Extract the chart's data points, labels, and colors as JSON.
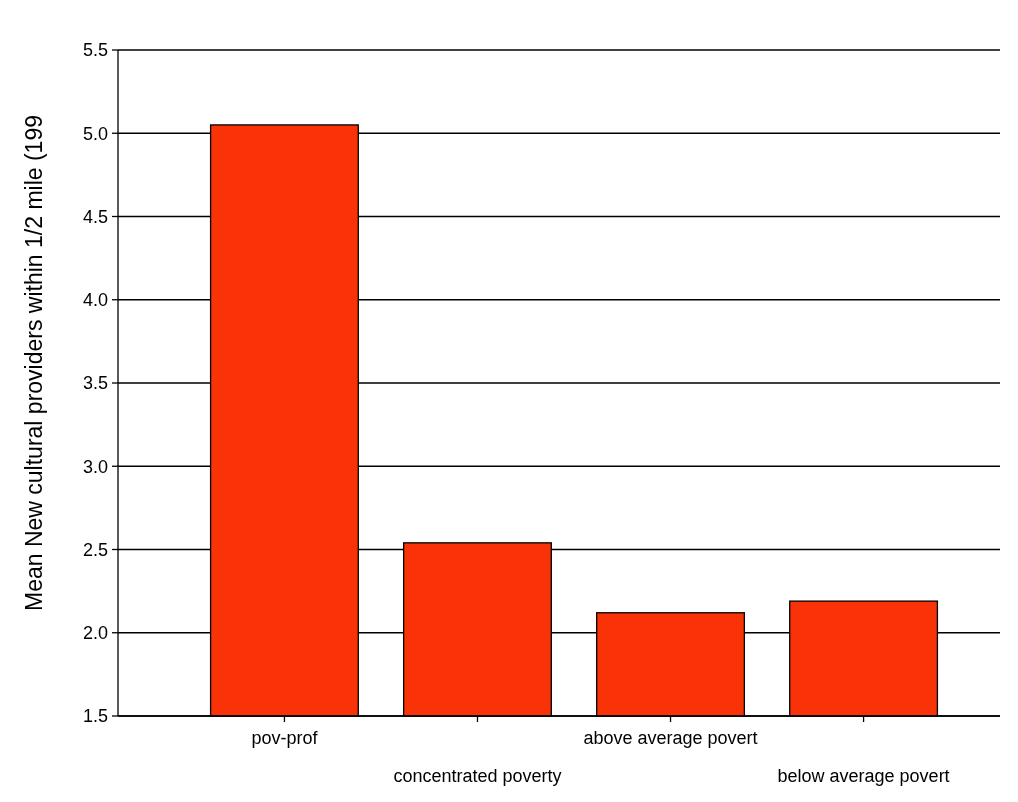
{
  "chart_data": {
    "type": "bar",
    "ylabel": "Mean New cultural providers within 1/2 mile (199",
    "categories": [
      "pov-prof",
      "concentrated poverty",
      "above average povert",
      "below average povert"
    ],
    "values": [
      5.05,
      2.54,
      2.12,
      2.19
    ],
    "color": "#fa3208",
    "ylim": [
      1.5,
      5.5
    ],
    "yticks": [
      1.5,
      {
        "value": 2,
        "label": "2.0"
      },
      2.5,
      {
        "value": 3,
        "label": "3.0"
      },
      3.5,
      {
        "value": 4,
        "label": "4.0"
      },
      4.5,
      {
        "value": 5,
        "label": "5.0"
      },
      5.5
    ],
    "grid": "y"
  }
}
